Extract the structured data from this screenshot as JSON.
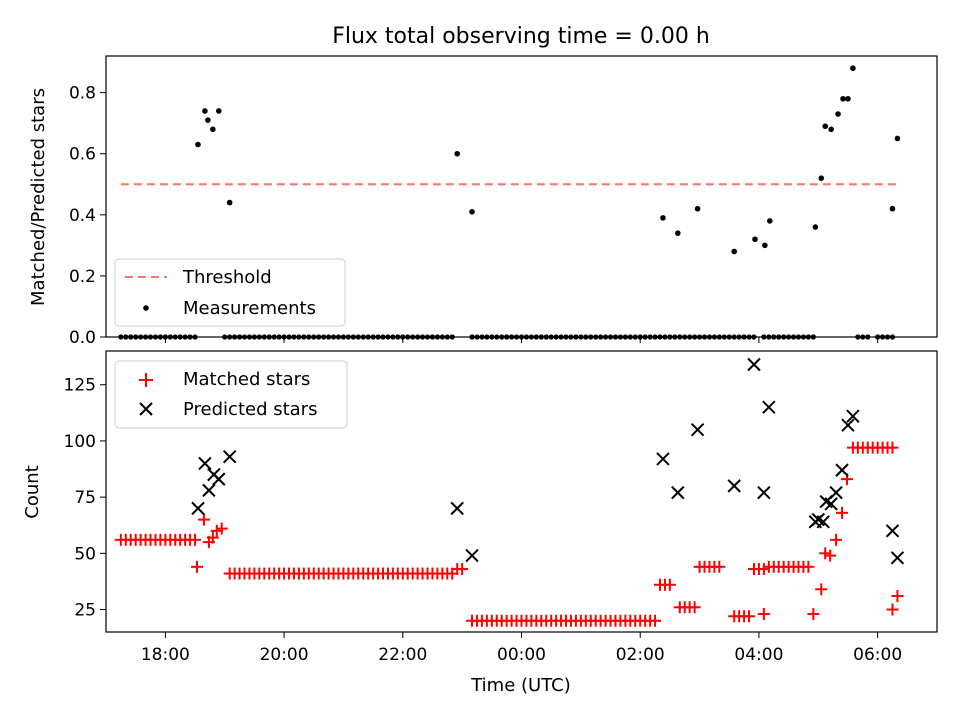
{
  "chart_data": [
    {
      "type": "scatter",
      "title": "Flux total observing time = 0.00 h",
      "xlabel": "",
      "ylabel": "Matched/Predicted stars",
      "xlim": [
        "17:00",
        "07:00"
      ],
      "ylim": [
        0,
        0.92
      ],
      "yticks": [
        "0.0",
        "0.2",
        "0.4",
        "0.6",
        "0.8"
      ],
      "ytick_values": [
        0.0,
        0.2,
        0.4,
        0.6,
        0.8
      ],
      "legend_position": "lower-left",
      "threshold": {
        "name": "Threshold",
        "value": 0.5,
        "x_start": "17:15",
        "x_end": "06:20",
        "color": "#ff7070",
        "style": "dashed"
      },
      "series": [
        {
          "name": "Measurements",
          "color": "#000000",
          "points": [
            [
              "18:33",
              0.63
            ],
            [
              "18:40",
              0.74
            ],
            [
              "18:43",
              0.71
            ],
            [
              "18:48",
              0.68
            ],
            [
              "18:54",
              0.74
            ],
            [
              "19:05",
              0.44
            ],
            [
              "22:55",
              0.6
            ],
            [
              "23:10",
              0.41
            ],
            [
              "02:23",
              0.39
            ],
            [
              "02:38",
              0.34
            ],
            [
              "02:58",
              0.42
            ],
            [
              "03:35",
              0.28
            ],
            [
              "03:56",
              0.32
            ],
            [
              "04:06",
              0.3
            ],
            [
              "04:11",
              0.38
            ],
            [
              "04:57",
              0.36
            ],
            [
              "05:03",
              0.52
            ],
            [
              "05:07",
              0.69
            ],
            [
              "05:13",
              0.68
            ],
            [
              "05:20",
              0.73
            ],
            [
              "05:25",
              0.78
            ],
            [
              "05:30",
              0.78
            ],
            [
              "05:35",
              0.88
            ],
            [
              "06:15",
              0.42
            ],
            [
              "06:20",
              0.65
            ]
          ],
          "zero_runs": [
            [
              "17:15",
              "18:30"
            ],
            [
              "19:00",
              "22:50"
            ],
            [
              "23:10",
              "02:15"
            ],
            [
              "02:20",
              "03:55"
            ],
            [
              "04:05",
              "04:55"
            ],
            [
              "05:40",
              "05:52"
            ],
            [
              "06:00",
              "06:15"
            ]
          ]
        }
      ]
    },
    {
      "type": "scatter",
      "title": "",
      "xlabel": "Time (UTC)",
      "ylabel": "Count",
      "xlim": [
        "17:00",
        "07:00"
      ],
      "ylim": [
        15,
        140
      ],
      "yticks": [
        "25",
        "50",
        "75",
        "100",
        "125"
      ],
      "ytick_values": [
        25,
        50,
        75,
        100,
        125
      ],
      "xticks": [
        "18:00",
        "20:00",
        "22:00",
        "00:00",
        "02:00",
        "04:00",
        "06:00"
      ],
      "legend_position": "upper-left",
      "series": [
        {
          "name": "Matched stars",
          "marker": "plus",
          "color": "#ff0000",
          "runs": [
            [
              "17:15",
              "18:30",
              56
            ],
            [
              "19:05",
              "22:50",
              41
            ],
            [
              "23:10",
              "02:15",
              20
            ],
            [
              "02:20",
              "02:30",
              36
            ],
            [
              "02:40",
              "02:55",
              26
            ],
            [
              "03:00",
              "03:20",
              44
            ],
            [
              "03:35",
              "03:50",
              22
            ],
            [
              "03:55",
              "04:05",
              43
            ],
            [
              "04:20",
              "04:50",
              44
            ],
            [
              "05:35",
              "06:15",
              97
            ]
          ],
          "points": [
            [
              "18:32",
              44
            ],
            [
              "18:39",
              65
            ],
            [
              "18:44",
              55
            ],
            [
              "18:48",
              57
            ],
            [
              "18:52",
              60
            ],
            [
              "18:57",
              61
            ],
            [
              "22:55",
              43
            ],
            [
              "23:00",
              43
            ],
            [
              "04:05",
              23
            ],
            [
              "04:10",
              44
            ],
            [
              "04:15",
              44
            ],
            [
              "04:55",
              23
            ],
            [
              "05:03",
              34
            ],
            [
              "05:07",
              50
            ],
            [
              "05:12",
              49
            ],
            [
              "05:18",
              56
            ],
            [
              "05:24",
              68
            ],
            [
              "05:29",
              83
            ],
            [
              "06:15",
              25
            ],
            [
              "06:20",
              31
            ]
          ]
        },
        {
          "name": "Predicted stars",
          "marker": "x",
          "color": "#000000",
          "points": [
            [
              "18:33",
              70
            ],
            [
              "18:40",
              90
            ],
            [
              "18:44",
              78
            ],
            [
              "18:49",
              85
            ],
            [
              "18:54",
              83
            ],
            [
              "19:05",
              93
            ],
            [
              "22:55",
              70
            ],
            [
              "23:10",
              49
            ],
            [
              "02:23",
              92
            ],
            [
              "02:38",
              77
            ],
            [
              "02:58",
              105
            ],
            [
              "03:35",
              80
            ],
            [
              "03:55",
              134
            ],
            [
              "04:05",
              77
            ],
            [
              "04:10",
              115
            ],
            [
              "04:57",
              64
            ],
            [
              "05:00",
              65
            ],
            [
              "05:05",
              64
            ],
            [
              "05:08",
              73
            ],
            [
              "05:13",
              72
            ],
            [
              "05:18",
              77
            ],
            [
              "05:24",
              87
            ],
            [
              "05:30",
              107
            ],
            [
              "05:35",
              111
            ],
            [
              "06:15",
              60
            ],
            [
              "06:20",
              48
            ]
          ]
        }
      ]
    }
  ]
}
